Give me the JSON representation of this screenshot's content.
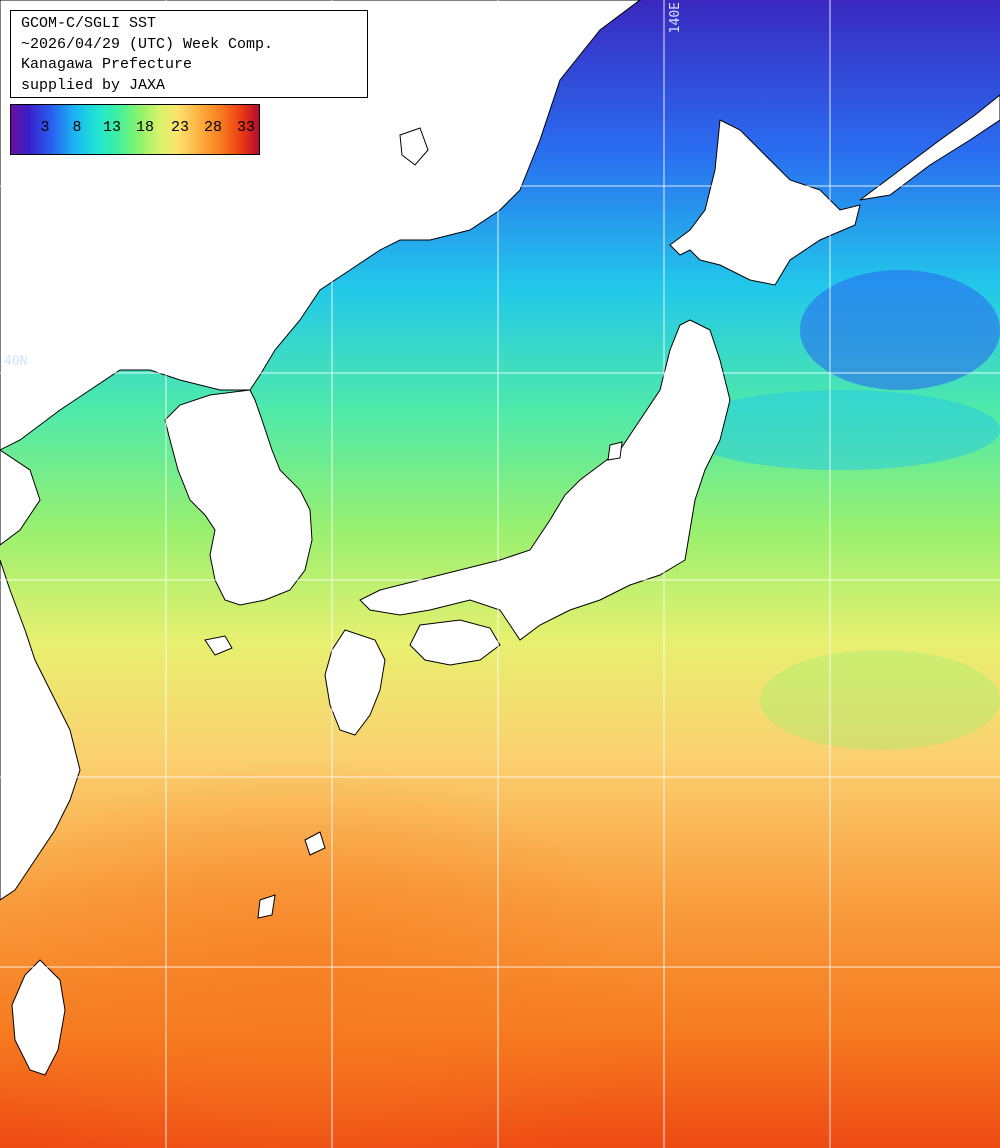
{
  "title_lines": [
    "GCOM-C/SGLI SST",
    "~2026/04/29 (UTC) Week Comp.",
    "Kanagawa Prefecture",
    "supplied by JAXA"
  ],
  "colorbar": {
    "ticks": [
      "3",
      "8",
      "13",
      "18",
      "23",
      "28",
      "33"
    ]
  },
  "grid_labels": {
    "lon": "140E",
    "lat": "40N"
  },
  "colors": {
    "cold": "#3a1ec8",
    "cool": "#22c8ea",
    "mild": "#8ef26a",
    "warm": "#fbe46e",
    "hot": "#f67a1e",
    "land": "#ffffff",
    "grid": "#ffffff"
  }
}
